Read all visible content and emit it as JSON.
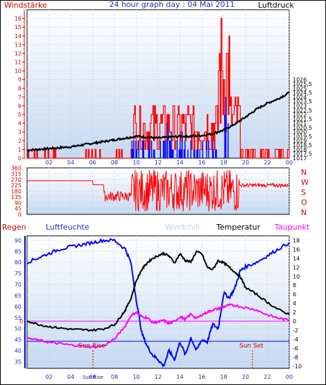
{
  "header": {
    "left_label": "Windstärke",
    "title": "24 hour graph day : 04 Mai 2011",
    "right_label": "Luftdruck"
  },
  "colors": {
    "frame": "#000000",
    "bg_top": "#ffffff",
    "bg_bottom": "#c9dbf2",
    "wind_red": "#ff0000",
    "wind_blue": "#0000ff",
    "pressure": "#000000",
    "humidity": "#0000ff",
    "temperature": "#000000",
    "dewpoint": "#ff00ff",
    "windchill": "#bcd2ee",
    "axis_red": "#cc0000",
    "axis_black": "#000000"
  },
  "x_ticks": [
    "02",
    "04",
    "06",
    "08",
    "10",
    "12",
    "14",
    "16",
    "18",
    "20",
    "22",
    "00"
  ],
  "chart_data": [
    {
      "type": "line",
      "title": "24 hour graph day : 04 Mai 2011",
      "left_axis": {
        "label": "Windstärke",
        "range": [
          0,
          17
        ],
        "ticks": [
          "0",
          "1",
          "2",
          "3",
          "4",
          "5",
          "6",
          "7",
          "8",
          "9",
          "10",
          "11",
          "12",
          "13",
          "14",
          "15",
          "16"
        ]
      },
      "right_axis": {
        "label": "Luftdruck",
        "range": [
          1017,
          1034
        ],
        "ticks": [
          "1017",
          "1017,5",
          "1018",
          "1018,5",
          "1019",
          "1019,5",
          "1020",
          "1020,5",
          "1021",
          "1021,5",
          "1022",
          "1022,5",
          "1023",
          "1023,5",
          "1024",
          "1024,5",
          "1025",
          "1025,5",
          "1026"
        ]
      },
      "series": [
        {
          "name": "Luftdruck",
          "x": [
            0,
            1,
            2,
            3,
            4,
            5,
            6,
            7,
            8,
            9,
            10,
            11,
            12,
            13,
            14,
            15,
            16,
            17,
            18,
            19,
            20,
            21,
            22,
            23,
            24
          ],
          "y": [
            1017.9,
            1018.0,
            1018.1,
            1018.2,
            1018.3,
            1018.5,
            1018.7,
            1018.9,
            1019.1,
            1019.3,
            1019.5,
            1019.4,
            1019.3,
            1019.4,
            1019.5,
            1019.5,
            1019.6,
            1019.8,
            1020.2,
            1020.9,
            1021.7,
            1022.6,
            1023.3,
            1023.8,
            1024.5
          ]
        }
      ]
    },
    {
      "type": "line",
      "right_axis": {
        "label": "N W S O N",
        "letters": [
          "N",
          "W",
          "S",
          "O",
          "N"
        ],
        "range": [
          0,
          360
        ],
        "ticks": [
          "0",
          "45",
          "90",
          "135",
          "180",
          "225",
          "270",
          "315",
          "360"
        ]
      },
      "series": []
    },
    {
      "type": "line",
      "legend": [
        "Regen",
        "Luftfeuchte",
        "Windchill",
        "Temperatur",
        "Taupunkt"
      ],
      "left_axis": {
        "label": "Luftfeuchte",
        "range": [
          32,
          92
        ],
        "ticks": [
          "35",
          "40",
          "45",
          "50",
          "55",
          "60",
          "65",
          "70",
          "75",
          "80",
          "85",
          "90"
        ]
      },
      "right_axis": {
        "label": "Temperatur",
        "range": [
          -10.5,
          19
        ],
        "ticks": [
          "-10",
          "-8",
          "-6",
          "-4",
          "-2",
          "0",
          "2",
          "4",
          "6",
          "8",
          "10",
          "12",
          "14",
          "16",
          "18"
        ]
      },
      "zero_mark": "0",
      "annotations": [
        "Sun Rise",
        "Sun Set"
      ],
      "x_extra_label": "Sun Rise",
      "series": [
        {
          "name": "Luftfeuchte",
          "x": [
            0,
            1,
            2,
            3,
            4,
            5,
            6,
            7,
            8,
            9,
            9.5,
            10,
            10.5,
            11,
            11.5,
            12,
            12.5,
            13,
            13.5,
            14,
            14.5,
            15,
            15.5,
            16,
            16.5,
            17,
            17.5,
            18,
            18.5,
            19,
            19.5,
            20,
            21,
            22,
            23,
            24
          ],
          "y": [
            80,
            82,
            84,
            86,
            87,
            88,
            89,
            90,
            90,
            86,
            80,
            63,
            48,
            42,
            38,
            36,
            33,
            40,
            36,
            44,
            38,
            46,
            40,
            45,
            44,
            52,
            50,
            66,
            64,
            68,
            76,
            78,
            80,
            83,
            86,
            89
          ]
        },
        {
          "name": "Temperatur",
          "x": [
            0,
            1,
            2,
            3,
            4,
            5,
            6,
            7,
            8,
            8.5,
            9,
            9.5,
            10,
            10.5,
            11,
            11.5,
            12,
            12.5,
            13,
            13.5,
            14,
            14.5,
            15,
            15.5,
            16,
            16.5,
            17,
            17.5,
            18,
            18.5,
            19,
            19.5,
            20,
            21,
            22,
            23,
            24
          ],
          "y": [
            0.1,
            -0.7,
            -1.2,
            -1.5,
            -1.8,
            -1.9,
            -2.0,
            -1.7,
            -0.8,
            0.8,
            2.5,
            5.0,
            9.0,
            11.5,
            13.0,
            14.0,
            14.6,
            15.1,
            14.5,
            13.0,
            15.0,
            13.5,
            13.2,
            15.5,
            15.0,
            12.0,
            11.5,
            13.5,
            13.0,
            12.0,
            11.0,
            10.0,
            7.5,
            6.0,
            4.2,
            2.6,
            1.5
          ]
        },
        {
          "name": "Taupunkt",
          "x": [
            0,
            1,
            2,
            3,
            4,
            5,
            6,
            7,
            8,
            9,
            9.5,
            10,
            10.5,
            11,
            11.5,
            12,
            12.5,
            13,
            13.5,
            14,
            14.5,
            15,
            15.5,
            16,
            16.5,
            17,
            17.5,
            18,
            18.5,
            19,
            20,
            21,
            22,
            23,
            24
          ],
          "y": [
            -3.8,
            -4.2,
            -4.7,
            -5.0,
            -5.3,
            -5.5,
            -5.8,
            -5.5,
            -4.0,
            -1.0,
            1.2,
            2.0,
            1.0,
            0.8,
            -0.3,
            -0.2,
            0.2,
            -0.5,
            0.0,
            1.0,
            0.4,
            1.6,
            0.6,
            1.4,
            2.0,
            2.5,
            2.8,
            3.2,
            3.6,
            3.5,
            3.0,
            2.5,
            1.4,
            0.7,
            0.2
          ]
        },
        {
          "name": "Windchill",
          "x": [],
          "y": []
        }
      ]
    }
  ]
}
